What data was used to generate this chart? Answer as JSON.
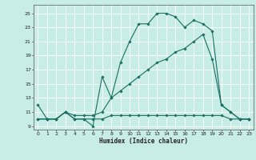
{
  "xlabel": "Humidex (Indice chaleur)",
  "xlim": [
    -0.5,
    23.5
  ],
  "ylim": [
    8.5,
    26.2
  ],
  "yticks": [
    9,
    11,
    13,
    15,
    17,
    19,
    21,
    23,
    25
  ],
  "xticks": [
    0,
    1,
    2,
    3,
    4,
    5,
    6,
    7,
    8,
    9,
    10,
    11,
    12,
    13,
    14,
    15,
    16,
    17,
    18,
    19,
    20,
    21,
    22,
    23
  ],
  "bg_color": "#c8ece6",
  "grid_color": "#ffffff",
  "line_color": "#1a6e62",
  "line1_y": [
    12,
    10,
    10,
    11,
    10,
    10,
    9,
    16,
    13,
    18,
    21,
    23.5,
    23.5,
    25,
    25,
    24.5,
    23,
    24,
    23.5,
    22.5,
    12,
    11,
    10,
    10
  ],
  "line2_y": [
    10,
    10,
    10,
    11,
    10,
    10,
    10,
    10,
    10.5,
    10.5,
    10.5,
    10.5,
    10.5,
    10.5,
    10.5,
    10.5,
    10.5,
    10.5,
    10.5,
    10.5,
    10.5,
    10,
    10,
    10
  ],
  "line3_y": [
    10,
    10,
    10,
    11,
    10.5,
    10.5,
    10.5,
    11,
    13,
    14,
    15,
    16,
    17,
    18,
    18.5,
    19.5,
    20,
    21,
    22,
    18.5,
    12,
    11,
    10,
    10
  ]
}
